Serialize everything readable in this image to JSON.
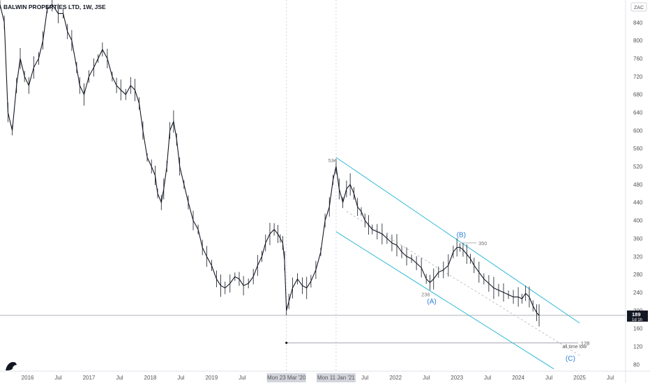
{
  "chart_data": {
    "type": "line",
    "title": "BALWIN PROPERTIES LTD, 1W, JSE",
    "currency": "ZAC",
    "last_price": "189",
    "countdown": "1d 1h",
    "y_ticks": [
      80,
      120,
      160,
      200,
      240,
      280,
      320,
      360,
      400,
      440,
      480,
      520,
      560,
      600,
      640,
      680,
      720,
      760,
      800,
      840,
      880
    ],
    "ylim": [
      65,
      890
    ],
    "x_ticks": [
      {
        "label": "2016",
        "t": 2016.0
      },
      {
        "label": "Jul",
        "t": 2016.5
      },
      {
        "label": "2017",
        "t": 2017.0
      },
      {
        "label": "Jul",
        "t": 2017.5
      },
      {
        "label": "2018",
        "t": 2018.0
      },
      {
        "label": "Jul",
        "t": 2018.5
      },
      {
        "label": "2019",
        "t": 2019.0
      },
      {
        "label": "Jul",
        "t": 2019.5
      },
      {
        "label": "Mon 23 Mar '20",
        "t": 2020.22,
        "highlight": true
      },
      {
        "label": "Mon 11 Jan '21",
        "t": 2021.03,
        "highlight": true
      },
      {
        "label": "Jul",
        "t": 2021.5
      },
      {
        "label": "2022",
        "t": 2022.0
      },
      {
        "label": "Jul",
        "t": 2022.5
      },
      {
        "label": "2023",
        "t": 2023.0
      },
      {
        "label": "Jul",
        "t": 2023.5
      },
      {
        "label": "2024",
        "t": 2024.0
      },
      {
        "label": "Jul",
        "t": 2024.5
      },
      {
        "label": "2025",
        "t": 2025.0
      },
      {
        "label": "Jul",
        "t": 2025.5
      }
    ],
    "xlim": [
      2015.55,
      2025.75
    ],
    "series": [
      {
        "points": [
          [
            2015.55,
            880
          ],
          [
            2015.62,
            840
          ],
          [
            2015.68,
            640
          ],
          [
            2015.75,
            600
          ],
          [
            2015.82,
            700
          ],
          [
            2015.88,
            760
          ],
          [
            2015.95,
            720
          ],
          [
            2016.02,
            700
          ],
          [
            2016.1,
            740
          ],
          [
            2016.18,
            760
          ],
          [
            2016.25,
            800
          ],
          [
            2016.32,
            870
          ],
          [
            2016.4,
            880
          ],
          [
            2016.5,
            860
          ],
          [
            2016.58,
            860
          ],
          [
            2016.65,
            820
          ],
          [
            2016.72,
            800
          ],
          [
            2016.8,
            740
          ],
          [
            2016.85,
            700
          ],
          [
            2016.92,
            680
          ],
          [
            2017.0,
            720
          ],
          [
            2017.08,
            740
          ],
          [
            2017.15,
            760
          ],
          [
            2017.22,
            780
          ],
          [
            2017.3,
            760
          ],
          [
            2017.38,
            720
          ],
          [
            2017.45,
            700
          ],
          [
            2017.52,
            690
          ],
          [
            2017.6,
            680
          ],
          [
            2017.68,
            700
          ],
          [
            2017.75,
            690
          ],
          [
            2017.82,
            660
          ],
          [
            2017.88,
            600
          ],
          [
            2017.95,
            540
          ],
          [
            2018.02,
            520
          ],
          [
            2018.08,
            500
          ],
          [
            2018.12,
            460
          ],
          [
            2018.18,
            440
          ],
          [
            2018.22,
            470
          ],
          [
            2018.27,
            520
          ],
          [
            2018.32,
            600
          ],
          [
            2018.38,
            620
          ],
          [
            2018.43,
            580
          ],
          [
            2018.48,
            520
          ],
          [
            2018.55,
            480
          ],
          [
            2018.62,
            440
          ],
          [
            2018.7,
            400
          ],
          [
            2018.78,
            380
          ],
          [
            2018.85,
            340
          ],
          [
            2018.92,
            320
          ],
          [
            2019.0,
            300
          ],
          [
            2019.08,
            270
          ],
          [
            2019.15,
            255
          ],
          [
            2019.22,
            250
          ],
          [
            2019.3,
            260
          ],
          [
            2019.38,
            275
          ],
          [
            2019.45,
            270
          ],
          [
            2019.52,
            255
          ],
          [
            2019.6,
            260
          ],
          [
            2019.68,
            275
          ],
          [
            2019.75,
            300
          ],
          [
            2019.82,
            320
          ],
          [
            2019.88,
            350
          ],
          [
            2019.95,
            370
          ],
          [
            2020.02,
            380
          ],
          [
            2020.08,
            370
          ],
          [
            2020.12,
            360
          ],
          [
            2020.16,
            350
          ],
          [
            2020.19,
            310
          ],
          [
            2020.22,
            200
          ],
          [
            2020.26,
            220
          ],
          [
            2020.32,
            250
          ],
          [
            2020.4,
            270
          ],
          [
            2020.48,
            255
          ],
          [
            2020.55,
            250
          ],
          [
            2020.62,
            265
          ],
          [
            2020.7,
            290
          ],
          [
            2020.78,
            330
          ],
          [
            2020.85,
            400
          ],
          [
            2020.92,
            430
          ],
          [
            2020.98,
            490
          ],
          [
            2021.03,
            520
          ],
          [
            2021.08,
            470
          ],
          [
            2021.14,
            440
          ],
          [
            2021.2,
            470
          ],
          [
            2021.26,
            480
          ],
          [
            2021.32,
            460
          ],
          [
            2021.38,
            430
          ],
          [
            2021.44,
            420
          ],
          [
            2021.5,
            400
          ],
          [
            2021.56,
            390
          ],
          [
            2021.62,
            380
          ],
          [
            2021.7,
            375
          ],
          [
            2021.78,
            370
          ],
          [
            2021.86,
            360
          ],
          [
            2021.94,
            350
          ],
          [
            2022.02,
            345
          ],
          [
            2022.1,
            330
          ],
          [
            2022.18,
            320
          ],
          [
            2022.26,
            315
          ],
          [
            2022.34,
            305
          ],
          [
            2022.42,
            295
          ],
          [
            2022.5,
            270
          ],
          [
            2022.56,
            262
          ],
          [
            2022.62,
            270
          ],
          [
            2022.7,
            285
          ],
          [
            2022.78,
            290
          ],
          [
            2022.86,
            300
          ],
          [
            2022.94,
            330
          ],
          [
            2023.0,
            340
          ],
          [
            2023.05,
            340
          ],
          [
            2023.1,
            335
          ],
          [
            2023.16,
            325
          ],
          [
            2023.22,
            315
          ],
          [
            2023.28,
            300
          ],
          [
            2023.36,
            285
          ],
          [
            2023.44,
            270
          ],
          [
            2023.52,
            260
          ],
          [
            2023.6,
            250
          ],
          [
            2023.68,
            245
          ],
          [
            2023.76,
            240
          ],
          [
            2023.84,
            235
          ],
          [
            2023.92,
            230
          ],
          [
            2024.0,
            230
          ],
          [
            2024.06,
            226
          ],
          [
            2024.12,
            238
          ],
          [
            2024.18,
            230
          ],
          [
            2024.24,
            210
          ],
          [
            2024.3,
            195
          ],
          [
            2024.34,
            189
          ]
        ]
      }
    ],
    "horizontal_lines": [
      {
        "y": 189,
        "style": "solid"
      },
      {
        "y": 128,
        "label": "128"
      }
    ],
    "channel": {
      "upper": [
        [
          2021.03,
          540
        ],
        [
          2025.0,
          172
        ]
      ],
      "lower": [
        [
          2021.03,
          375
        ],
        [
          2024.58,
          70
        ]
      ]
    },
    "dashed_midline": [
      [
        2021.2,
        420
      ],
      [
        2025.0,
        100
      ]
    ],
    "annotations": [
      {
        "text": "534",
        "t": 2020.9,
        "y": 534,
        "kind": "price"
      },
      {
        "text": "(B)",
        "t": 2023.07,
        "y": 363,
        "kind": "wave"
      },
      {
        "text": "350",
        "t": 2023.35,
        "y": 350,
        "kind": "price"
      },
      {
        "text": "236",
        "t": 2022.42,
        "y": 236,
        "kind": "price"
      },
      {
        "text": "(A)",
        "t": 2022.59,
        "y": 215,
        "kind": "wave"
      },
      {
        "text": "all time low",
        "t": 2024.72,
        "y": 116,
        "kind": "note"
      },
      {
        "text": "(C)",
        "t": 2024.85,
        "y": 88,
        "kind": "wave"
      }
    ]
  }
}
